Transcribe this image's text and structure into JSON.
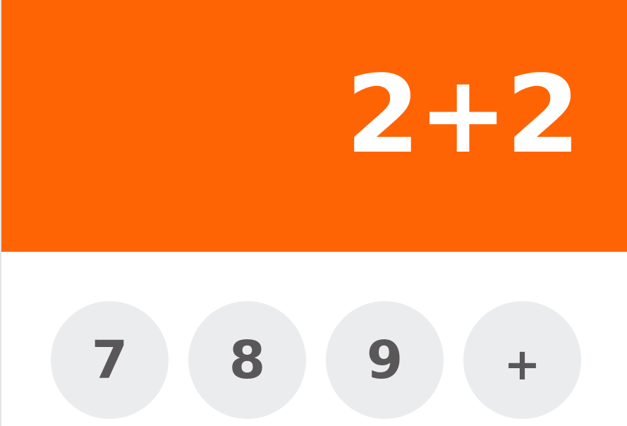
{
  "display": {
    "value": "2+2"
  },
  "keypad": {
    "keys": [
      {
        "label": "7"
      },
      {
        "label": "8"
      },
      {
        "label": "9"
      },
      {
        "label": "+"
      }
    ]
  },
  "colors": {
    "display_background": "#ff6404",
    "display_text": "#ffffff",
    "key_background": "#ebecee",
    "key_text": "#5a5759",
    "keypad_background": "#ffffff"
  }
}
